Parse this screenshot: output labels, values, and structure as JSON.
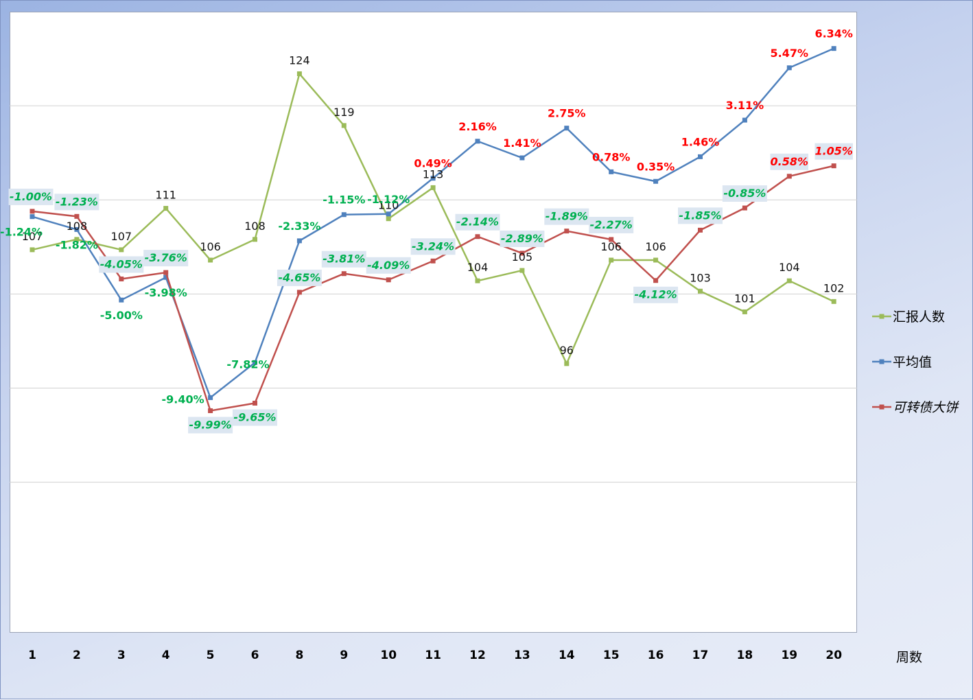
{
  "chart_data": {
    "type": "line",
    "categories": [
      "1",
      "2",
      "3",
      "4",
      "5",
      "6",
      "8",
      "9",
      "10",
      "11",
      "12",
      "13",
      "14",
      "15",
      "16",
      "17",
      "18",
      "19",
      "20"
    ],
    "xlabel": "周数",
    "grid": true,
    "legend_position": "right",
    "series": [
      {
        "name": "汇报人数",
        "color": "#9bbb59",
        "axis": "secondary",
        "values": [
          107,
          108,
          107,
          111,
          106,
          108,
          124,
          119,
          110,
          113,
          104,
          105,
          96,
          106,
          106,
          103,
          101,
          104,
          102
        ],
        "labels": [
          "107",
          "108",
          "107",
          "111",
          "106",
          "108",
          "124",
          "119",
          "110",
          "113",
          "104",
          "105",
          "96",
          "106",
          "106",
          "103",
          "101",
          "104",
          "102"
        ]
      },
      {
        "name": "平均值",
        "color": "#4f81bd",
        "axis": "primary",
        "values": [
          -1.24,
          -1.82,
          -5.0,
          -3.98,
          -9.4,
          -7.82,
          -2.33,
          -1.15,
          -1.12,
          0.49,
          2.16,
          1.41,
          2.75,
          0.78,
          0.35,
          1.46,
          3.11,
          5.47,
          6.34
        ],
        "labels": [
          "-1.24%",
          "-1.82%",
          "-5.00%",
          "-3.98%",
          "-9.40%",
          "-7.82%",
          "-2.33%",
          "-1.15%",
          "-1.12%",
          "0.49%",
          "2.16%",
          "1.41%",
          "2.75%",
          "0.78%",
          "0.35%",
          "1.46%",
          "3.11%",
          "5.47%",
          "6.34%"
        ]
      },
      {
        "name": "可转债大饼",
        "color": "#c0504d",
        "axis": "primary",
        "values": [
          -1.0,
          -1.23,
          -4.05,
          -3.76,
          -9.99,
          -9.65,
          -4.65,
          -3.81,
          -4.09,
          -3.24,
          -2.14,
          -2.89,
          -1.89,
          -2.27,
          -4.12,
          -1.85,
          -0.85,
          0.58,
          1.05
        ],
        "labels": [
          "-1.00%",
          "-1.23%",
          "-4.05%",
          "-3.76%",
          "-9.99%",
          "-9.65%",
          "-4.65%",
          "-3.81%",
          "-4.09%",
          "-3.24%",
          "-2.14%",
          "-2.89%",
          "-1.89%",
          "-2.27%",
          "-4.12%",
          "-1.85%",
          "-0.85%",
          "0.58%",
          "1.05%"
        ]
      }
    ],
    "label_colors": {
      "positive": "#ff0000",
      "negative": "#00b050",
      "count": "#111111",
      "box_fill": "#dce6f1"
    },
    "primary_axis_range": [
      -20,
      8
    ],
    "secondary_axis_range": [
      70,
      130
    ]
  }
}
